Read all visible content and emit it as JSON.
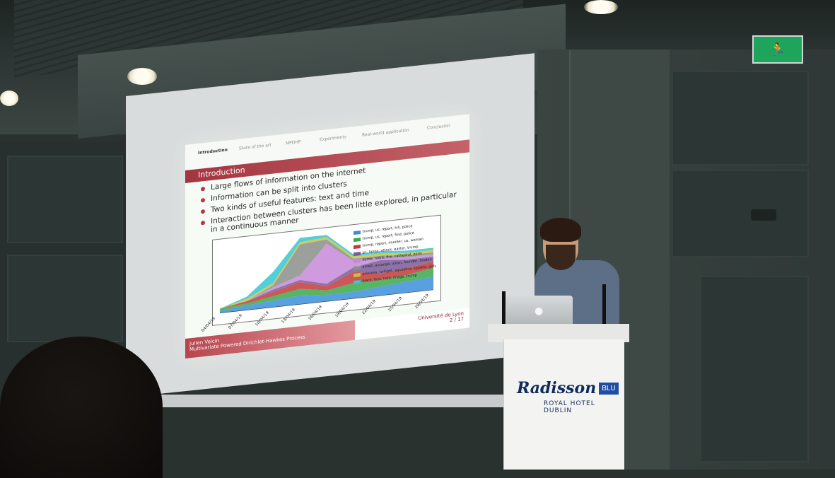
{
  "slide": {
    "nav": [
      "Introduction",
      "State of the art",
      "MPDHP",
      "Experiments",
      "Real-world application",
      "Conclusion"
    ],
    "active_nav": "Introduction",
    "title": "Introduction",
    "bullets": [
      "Large flows of information on the internet",
      "Information can be split into clusters",
      "Two kinds of useful features: text and time",
      "Interaction between clusters has been little explored, in particular in a continuous manner"
    ],
    "footer_author": "Julien Velcin",
    "footer_talk": "Multivariate Powered Dirichlet-Hawkes Process",
    "footer_university": "Université de Lyon",
    "page": "2 / 17"
  },
  "chart_data": {
    "type": "area",
    "x": [
      "04/04/19",
      "07/04/19",
      "10/04/19",
      "13/04/19",
      "16/04/19",
      "19/04/19",
      "22/04/19",
      "25/04/19",
      "28/04/19"
    ],
    "series": [
      {
        "name": "trump, us, report, kill, police",
        "color": "#3b8fd9",
        "values": [
          1,
          2,
          3,
          4,
          3,
          3,
          4,
          5,
          6
        ]
      },
      {
        "name": "trump, us, report, find, police",
        "color": "#3aa84a",
        "values": [
          1,
          1,
          2,
          3,
          2,
          4,
          3,
          3,
          4
        ]
      },
      {
        "name": "trump, report, mueller, us, woman",
        "color": "#c23a3a",
        "values": [
          0,
          1,
          2,
          3,
          2,
          5,
          3,
          3,
          3
        ]
      },
      {
        "name": "sri, lanka, attack, easter, trump",
        "color": "#7a5a9a",
        "values": [
          0,
          0,
          1,
          1,
          1,
          2,
          6,
          4,
          2
        ]
      },
      {
        "name": "dame, notre, fire, cathedral, paris",
        "color": "#c888d8",
        "values": [
          0,
          0,
          1,
          2,
          18,
          3,
          1,
          1,
          1
        ]
      },
      {
        "name": "arrest, assange, julian, founder, london",
        "color": "#8a8f8c",
        "values": [
          0,
          0,
          1,
          14,
          2,
          1,
          1,
          1,
          1
        ]
      },
      {
        "name": "princess, twilight, equestria, sparkle, girls",
        "color": "#c9c23a",
        "values": [
          0,
          1,
          1,
          1,
          1,
          1,
          1,
          1,
          1
        ]
      },
      {
        "name": "black, first, hole, image, trump",
        "color": "#35c7d2",
        "values": [
          0,
          1,
          5,
          2,
          1,
          1,
          1,
          1,
          1
        ]
      }
    ]
  },
  "podium": {
    "brand": "Radisson",
    "brand_badge": "BLU",
    "hotel": "ROYAL HOTEL DUBLIN"
  },
  "exit_sign": "🏃"
}
